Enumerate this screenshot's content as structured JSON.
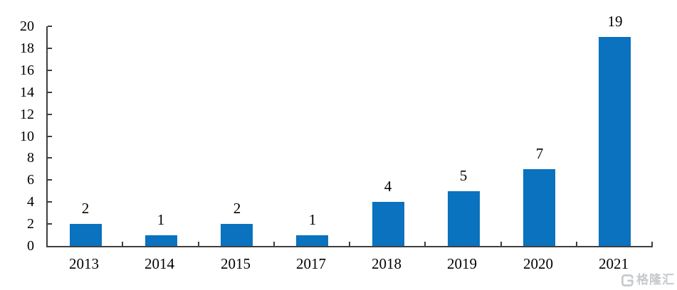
{
  "chart_data": {
    "type": "bar",
    "categories": [
      "2013",
      "2014",
      "2015",
      "2017",
      "2018",
      "2019",
      "2020",
      "2021"
    ],
    "values": [
      2,
      1,
      2,
      1,
      4,
      5,
      7,
      19
    ],
    "data_labels": [
      "2",
      "1",
      "2",
      "1",
      "4",
      "5",
      "7",
      "19"
    ],
    "title": "",
    "xlabel": "",
    "ylabel": "",
    "ylim": [
      0,
      20
    ],
    "y_ticks": [
      0,
      2,
      4,
      6,
      8,
      10,
      12,
      14,
      16,
      18,
      20
    ],
    "grid": false,
    "legend_position": "none",
    "bar_color": "#0a72bf",
    "axis_color": "#3f3f3f",
    "text_color": "#000000",
    "background_color": "#ffffff"
  },
  "watermark": {
    "text": "格隆汇",
    "icon": "gelonghui-g-logo",
    "color": "#c6c9cd"
  }
}
